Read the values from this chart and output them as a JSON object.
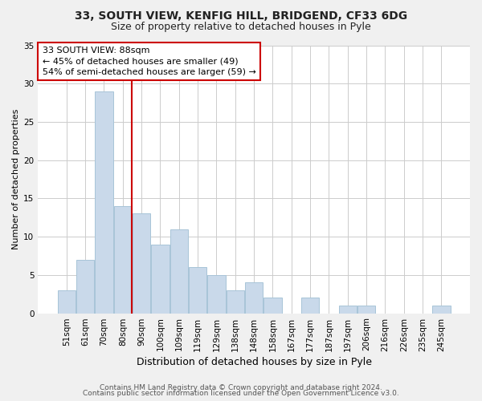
{
  "title": "33, SOUTH VIEW, KENFIG HILL, BRIDGEND, CF33 6DG",
  "subtitle": "Size of property relative to detached houses in Pyle",
  "xlabel": "Distribution of detached houses by size in Pyle",
  "ylabel": "Number of detached properties",
  "footer_line1": "Contains HM Land Registry data © Crown copyright and database right 2024.",
  "footer_line2": "Contains public sector information licensed under the Open Government Licence v3.0.",
  "bar_labels": [
    "51sqm",
    "61sqm",
    "70sqm",
    "80sqm",
    "90sqm",
    "100sqm",
    "109sqm",
    "119sqm",
    "129sqm",
    "138sqm",
    "148sqm",
    "158sqm",
    "167sqm",
    "177sqm",
    "187sqm",
    "197sqm",
    "206sqm",
    "216sqm",
    "226sqm",
    "235sqm",
    "245sqm"
  ],
  "bar_values": [
    3,
    7,
    29,
    14,
    13,
    9,
    11,
    6,
    5,
    3,
    4,
    2,
    0,
    2,
    0,
    1,
    1,
    0,
    0,
    0,
    1
  ],
  "bar_color": "#c9d9ea",
  "bar_edge_color": "#a8c4d8",
  "ylim": [
    0,
    35
  ],
  "yticks": [
    0,
    5,
    10,
    15,
    20,
    25,
    30,
    35
  ],
  "background_color": "#f0f0f0",
  "plot_bg_color": "#ffffff",
  "grid_color": "#cccccc",
  "annotation_box_text": "33 SOUTH VIEW: 88sqm\n← 45% of detached houses are smaller (49)\n54% of semi-detached houses are larger (59) →",
  "annotation_box_color": "#ffffff",
  "annotation_box_edge_color": "#cc0000",
  "red_line_x": 3.5,
  "title_fontsize": 10,
  "subtitle_fontsize": 9,
  "xlabel_fontsize": 9,
  "ylabel_fontsize": 8,
  "tick_fontsize": 7.5,
  "footer_fontsize": 6.5,
  "annotation_fontsize": 8
}
